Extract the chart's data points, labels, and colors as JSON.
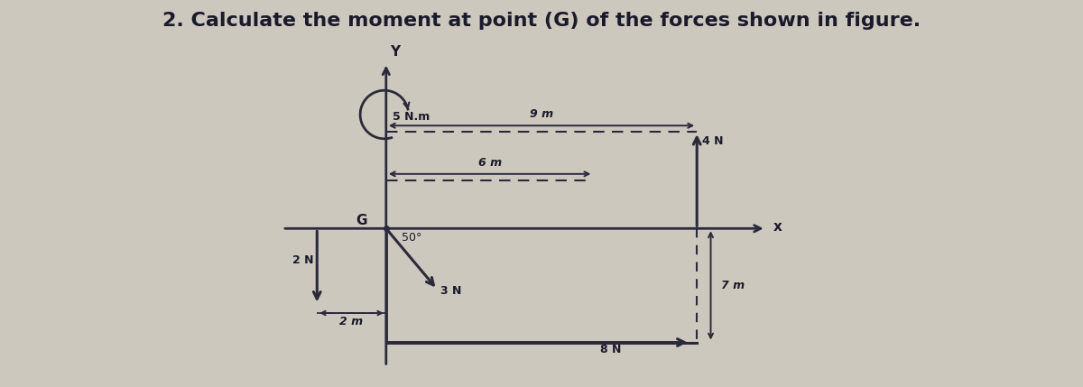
{
  "title": "2. Calculate the moment at point (G) of the forces shown in figure.",
  "title_fontsize": 16,
  "title_fontweight": "bold",
  "bg_color": "#cdc8be",
  "fig_width": 12.0,
  "fig_height": 4.29,
  "moment_label": "5 N.m",
  "dim_9m_label": "9 m",
  "force_4N_label": "4 N",
  "dim_6m_label": "6 m",
  "force_2N_label": "2 N",
  "dim_2m_label": "2 m",
  "force_3N_label": "3 N",
  "force_3N_angle_label": "50°",
  "force_8N_label": "8 N",
  "dim_7m_label": "7 m",
  "G_label": "G",
  "X_label": "x",
  "Y_label": "Y",
  "arrow_color": "#2a2a3a",
  "dashed_color": "#2a2a3a",
  "text_color": "#1a1a2a"
}
